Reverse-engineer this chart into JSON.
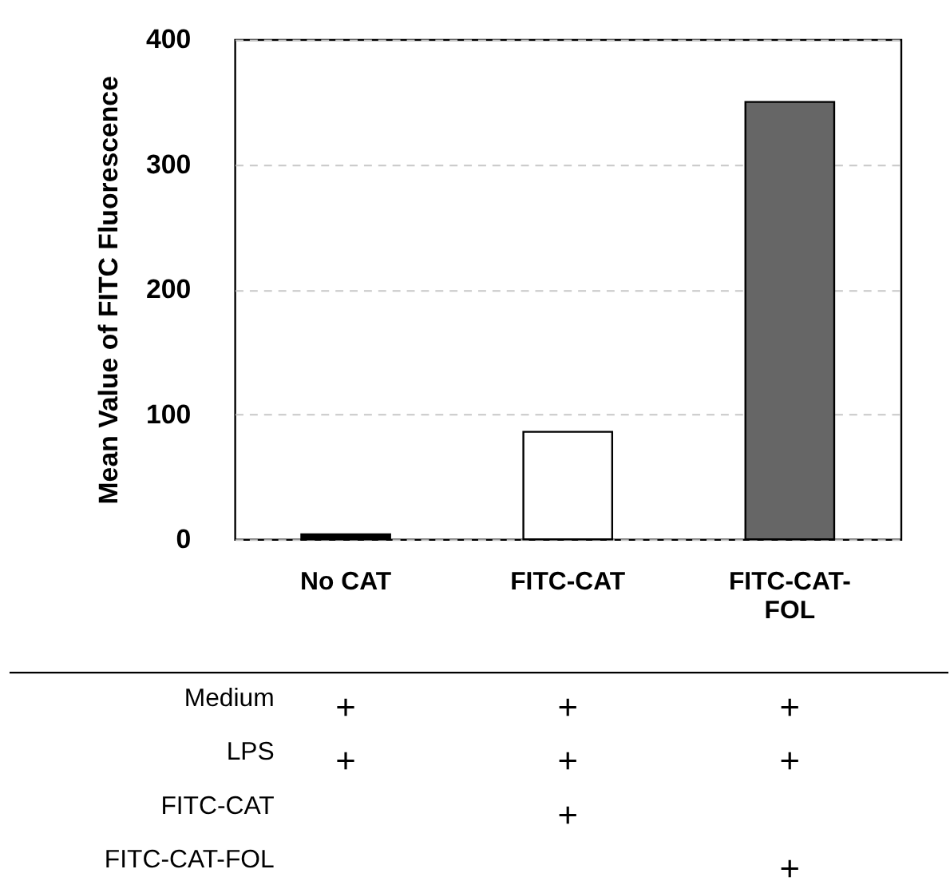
{
  "chart_data": {
    "type": "bar",
    "ylabel": "Mean Value of  FITC Fluorescence",
    "categories": [
      "No CAT",
      "FITC-CAT",
      "FITC-CAT-FOL"
    ],
    "values": [
      4,
      86,
      350
    ],
    "colors": [
      "#000000",
      "#ffffff",
      "#666666"
    ],
    "ylim": [
      0,
      400
    ],
    "yticks": [
      0,
      100,
      200,
      300,
      400
    ],
    "grid": "y",
    "annotations": [
      "Medium",
      "+",
      "+",
      "+",
      "LPS",
      "+",
      "+",
      "+",
      "FITC-CAT",
      null,
      "+",
      null,
      "FITC-CAT-FOL",
      null,
      null,
      "+"
    ]
  }
}
